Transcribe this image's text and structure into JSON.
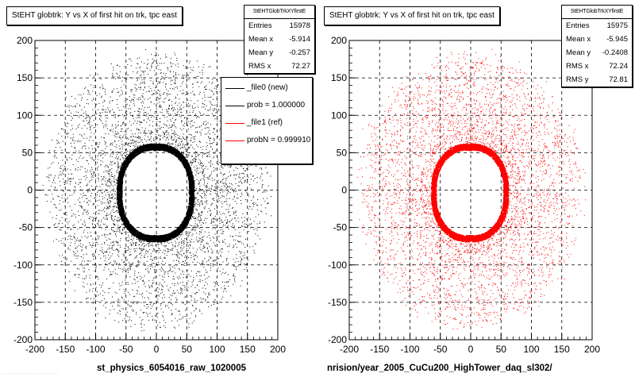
{
  "panels": [
    {
      "title": "StEHT globtrk: Y vs X of first hit on trk, tpc east",
      "stats": {
        "name": "StEHTGlobTrkXYfirstE",
        "rows": [
          {
            "label": "Entries",
            "value": "15978"
          },
          {
            "label": "Mean x",
            "value": "-5.914"
          },
          {
            "label": "Mean y",
            "value": "-0.257"
          },
          {
            "label": "RMS x",
            "value": "72.27"
          }
        ]
      },
      "legend": [
        {
          "label": "_file0 (new)",
          "color": "#000000"
        },
        {
          "label": "prob = 1.000000",
          "color": "#000000"
        },
        {
          "label": "_file1 (ref)",
          "color": "#ff0000"
        },
        {
          "label": "probN = 0.999910",
          "color": "#ff0000"
        }
      ],
      "xcaption": "st_physics_6054016_raw_1020005",
      "marker_color": "#000000"
    },
    {
      "title": "StEHT globtrk: Y vs X of first hit on trk, tpc east",
      "stats": {
        "name": "StEHTGlobTrkXYfirstE",
        "rows": [
          {
            "label": "Entries",
            "value": "15975"
          },
          {
            "label": "Mean x",
            "value": "-5.945"
          },
          {
            "label": "Mean y",
            "value": "-0.2408"
          },
          {
            "label": "RMS x",
            "value": "72.24"
          },
          {
            "label": "RMS y",
            "value": "72.81"
          }
        ]
      },
      "xcaption": "nrision/year_2005_CuCu200_HighTower_daq_sl302/",
      "marker_color": "#ff0000"
    }
  ],
  "footer_faint": "· · · · · · · · · · · · · · · · · · · ·",
  "chart_data": [
    {
      "type": "scatter",
      "title": "StEHT globtrk: Y vs X of first hit on trk, tpc east",
      "xlim": [
        -200,
        200
      ],
      "ylim": [
        -200,
        200
      ],
      "xticks": [
        -200,
        -150,
        -100,
        -50,
        0,
        50,
        100,
        150,
        200
      ],
      "yticks": [
        -200,
        -150,
        -100,
        -50,
        0,
        50,
        100,
        150,
        200
      ],
      "grid": true,
      "series": [
        {
          "name": "_file0 (new)",
          "color": "#000000",
          "entries": 15978
        }
      ],
      "structure": {
        "inner_ring_radius_x": [
          55,
          65
        ],
        "inner_ring_radius_y": [
          55,
          65
        ],
        "outer_ring_radius": [
          120,
          175
        ]
      }
    },
    {
      "type": "scatter",
      "title": "StEHT globtrk: Y vs X of first hit on trk, tpc east",
      "xlim": [
        -200,
        200
      ],
      "ylim": [
        -200,
        200
      ],
      "xticks": [
        -200,
        -150,
        -100,
        -50,
        0,
        50,
        100,
        150,
        200
      ],
      "yticks": [
        -200,
        -150,
        -100,
        -50,
        0,
        50,
        100,
        150,
        200
      ],
      "grid": true,
      "series": [
        {
          "name": "_file1 (ref)",
          "color": "#ff0000",
          "entries": 15975
        }
      ],
      "structure": {
        "inner_ring_radius_x": [
          55,
          65
        ],
        "inner_ring_radius_y": [
          55,
          65
        ],
        "outer_ring_radius": [
          120,
          175
        ]
      }
    }
  ]
}
